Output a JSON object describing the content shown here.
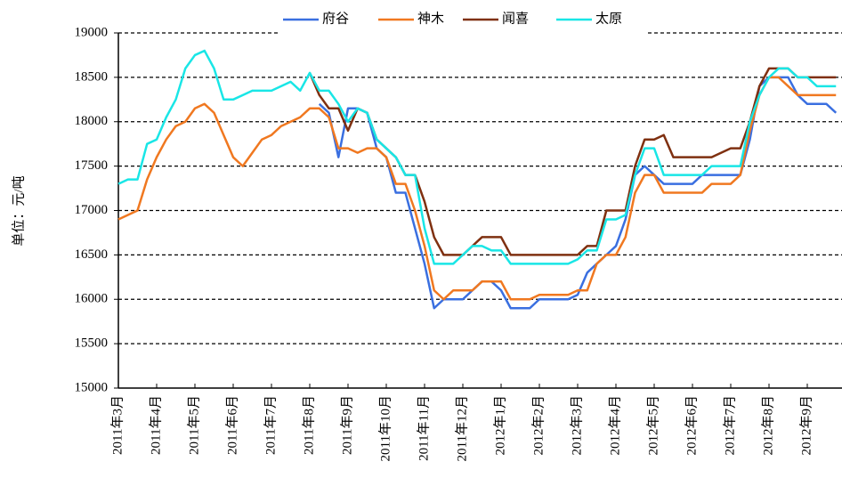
{
  "chart_data": {
    "type": "line",
    "y_label": "单位：元/吨",
    "categories": [
      "2011年3月",
      null,
      null,
      null,
      "2011年4月",
      null,
      null,
      null,
      "2011年5月",
      null,
      null,
      null,
      "2011年6月",
      null,
      null,
      null,
      "2011年7月",
      null,
      null,
      null,
      "2011年8月",
      null,
      null,
      null,
      "2011年9月",
      null,
      null,
      null,
      "2011年10月",
      null,
      null,
      null,
      "2011年11月",
      null,
      null,
      null,
      "2011年12月",
      null,
      null,
      null,
      "2012年1月",
      null,
      null,
      null,
      "2012年2月",
      null,
      null,
      null,
      "2012年3月",
      null,
      null,
      null,
      "2012年4月",
      null,
      null,
      null,
      "2012年5月",
      null,
      null,
      null,
      "2012年6月",
      null,
      null,
      null,
      "2012年7月",
      null,
      null,
      null,
      "2012年8月",
      null,
      null,
      null,
      "2012年9月",
      null,
      null,
      null
    ],
    "series": [
      {
        "name": "府谷",
        "color": "#3a6fe0",
        "values": [
          null,
          null,
          null,
          null,
          null,
          null,
          null,
          null,
          null,
          null,
          null,
          null,
          null,
          null,
          null,
          null,
          null,
          null,
          null,
          null,
          null,
          18200,
          18100,
          17600,
          18150,
          18150,
          18100,
          17700,
          17600,
          17200,
          17200,
          16800,
          16400,
          15900,
          16000,
          16000,
          16000,
          16100,
          16200,
          16200,
          16100,
          15900,
          15900,
          15900,
          16000,
          16000,
          16000,
          16000,
          16050,
          16300,
          16400,
          16500,
          16600,
          16900,
          17400,
          17500,
          17400,
          17300,
          17300,
          17300,
          17300,
          17400,
          17400,
          17400,
          17400,
          17400,
          17800,
          18400,
          18500,
          18500,
          18500,
          18300,
          18200,
          18200,
          18200,
          18100
        ]
      },
      {
        "name": "神木",
        "color": "#f07820",
        "values": [
          16900,
          16950,
          17000,
          17350,
          17600,
          17800,
          17950,
          18000,
          18150,
          18200,
          18100,
          17850,
          17600,
          17500,
          17650,
          17800,
          17850,
          17950,
          18000,
          18050,
          18150,
          18150,
          18050,
          17700,
          17700,
          17650,
          17700,
          17700,
          17600,
          17300,
          17300,
          17000,
          16600,
          16100,
          16000,
          16100,
          16100,
          16100,
          16200,
          16200,
          16200,
          16000,
          16000,
          16000,
          16050,
          16050,
          16050,
          16050,
          16100,
          16100,
          16400,
          16500,
          16500,
          16700,
          17200,
          17400,
          17400,
          17200,
          17200,
          17200,
          17200,
          17200,
          17300,
          17300,
          17300,
          17400,
          17900,
          18300,
          18500,
          18500,
          18400,
          18300,
          18300,
          18300,
          18300,
          18300
        ]
      },
      {
        "name": "闻喜",
        "color": "#7f3010",
        "values": [
          null,
          null,
          null,
          null,
          null,
          null,
          null,
          null,
          null,
          null,
          null,
          null,
          null,
          null,
          null,
          null,
          null,
          null,
          null,
          null,
          18550,
          18300,
          18150,
          18150,
          17900,
          18150,
          18100,
          17800,
          17700,
          17600,
          17400,
          17400,
          17100,
          16700,
          16500,
          16500,
          16500,
          16600,
          16700,
          16700,
          16700,
          16500,
          16500,
          16500,
          16500,
          16500,
          16500,
          16500,
          16500,
          16600,
          16600,
          17000,
          17000,
          17000,
          17500,
          17800,
          17800,
          17850,
          17600,
          17600,
          17600,
          17600,
          17600,
          17650,
          17700,
          17700,
          18000,
          18400,
          18600,
          18600,
          18600,
          18500,
          18500,
          18500,
          18500,
          18500
        ]
      },
      {
        "name": "太原",
        "color": "#19e6e6",
        "values": [
          17300,
          17350,
          17350,
          17750,
          17800,
          18050,
          18250,
          18600,
          18750,
          18800,
          18600,
          18250,
          18250,
          18300,
          18350,
          18350,
          18350,
          18400,
          18450,
          18350,
          18550,
          18350,
          18350,
          18200,
          18000,
          18150,
          18100,
          17800,
          17700,
          17600,
          17400,
          17400,
          16800,
          16400,
          16400,
          16400,
          16500,
          16600,
          16600,
          16550,
          16550,
          16400,
          16400,
          16400,
          16400,
          16400,
          16400,
          16400,
          16450,
          16550,
          16550,
          16900,
          16900,
          16950,
          17400,
          17700,
          17700,
          17400,
          17400,
          17400,
          17400,
          17400,
          17500,
          17500,
          17500,
          17500,
          18000,
          18300,
          18500,
          18600,
          18600,
          18500,
          18500,
          18400,
          18400,
          18400
        ]
      }
    ],
    "ylim": [
      15000,
      19000
    ],
    "yticks": [
      15000,
      15500,
      16000,
      16500,
      17000,
      17500,
      18000,
      18500,
      19000
    ],
    "grid": true,
    "legend": "top"
  }
}
